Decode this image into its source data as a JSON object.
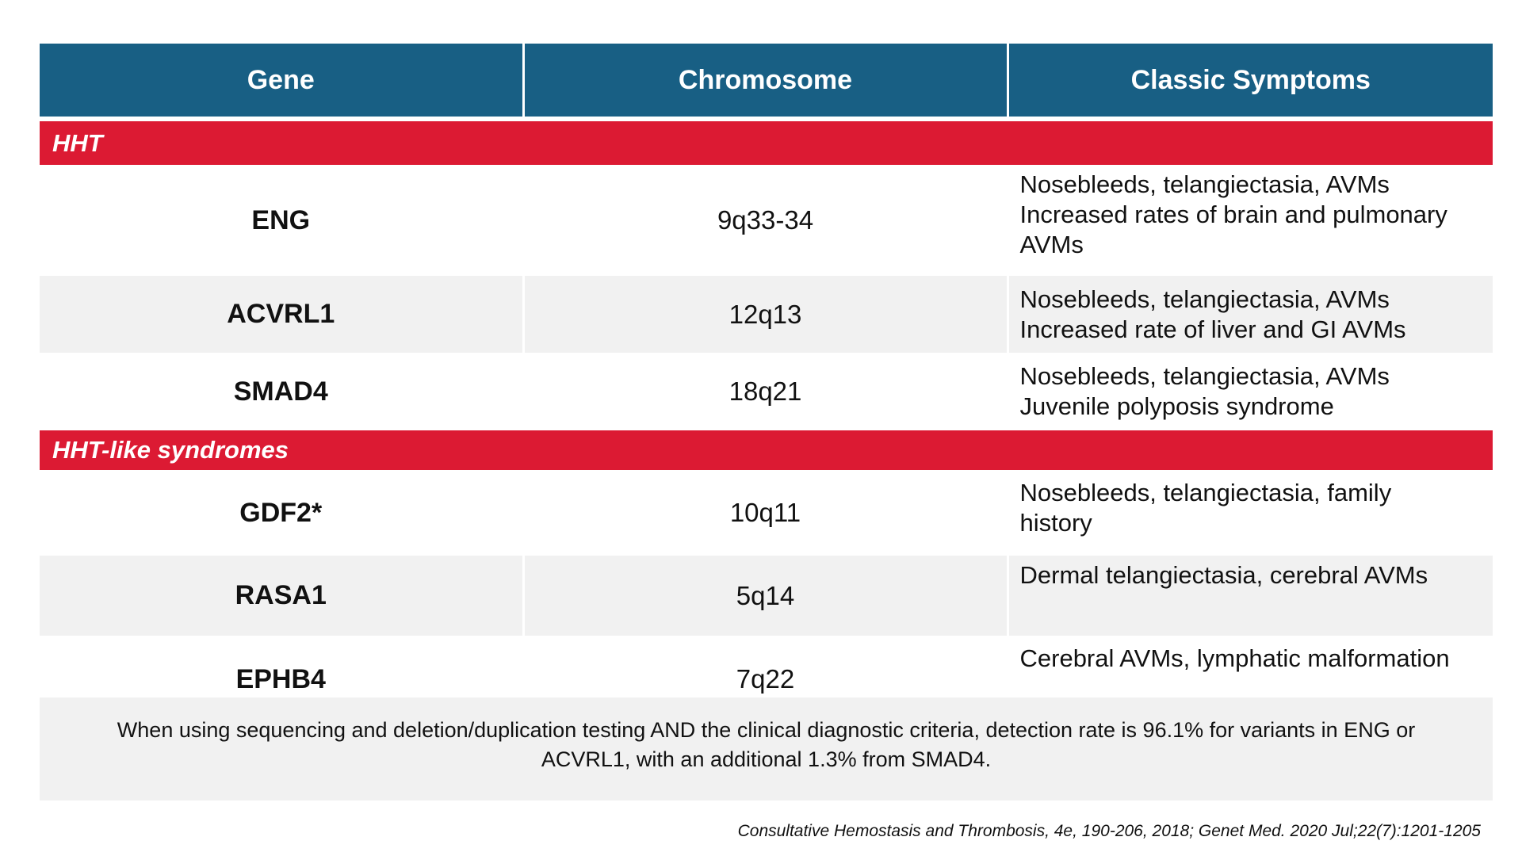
{
  "table": {
    "headers": [
      "Gene",
      "Chromosome",
      "Classic Symptoms"
    ],
    "sections": [
      {
        "label": "HHT",
        "rows": [
          {
            "gene": "ENG",
            "chromosome": "9q33-34",
            "symptoms": [
              "Nosebleeds, telangiectasia, AVMs",
              "Increased rates of brain and pulmonary",
              "AVMs"
            ]
          },
          {
            "gene": "ACVRL1",
            "chromosome": "12q13",
            "symptoms": [
              "Nosebleeds, telangiectasia, AVMs",
              "Increased rate of liver and GI AVMs"
            ]
          },
          {
            "gene": "SMAD4",
            "chromosome": "18q21",
            "symptoms": [
              "Nosebleeds, telangiectasia, AVMs",
              "Juvenile polyposis syndrome"
            ]
          }
        ]
      },
      {
        "label": "HHT-like syndromes",
        "rows": [
          {
            "gene": "GDF2*",
            "chromosome": "10q11",
            "symptoms": [
              "Nosebleeds, telangiectasia, family",
              "history"
            ]
          },
          {
            "gene": "RASA1",
            "chromosome": "5q14",
            "symptoms": [
              "Dermal telangiectasia, cerebral AVMs"
            ]
          },
          {
            "gene": "EPHB4",
            "chromosome": "7q22",
            "symptoms": [
              "Cerebral AVMs, lymphatic malformation"
            ]
          }
        ]
      }
    ]
  },
  "note": "When using sequencing and deletion/duplication testing AND the clinical diagnostic criteria, detection rate is 96.1% for variants in ENG or ACVRL1, with an additional 1.3% from SMAD4.",
  "citation": "Consultative Hemostasis and Thrombosis, 4e, 190-206, 2018; Genet Med. 2020 Jul;22(7):1201-1205",
  "colors": {
    "header_bg": "#185f84",
    "section_bg": "#dc1a33",
    "shaded_row_bg": "#f1f1f1",
    "note_bg": "#f1f1f1"
  }
}
